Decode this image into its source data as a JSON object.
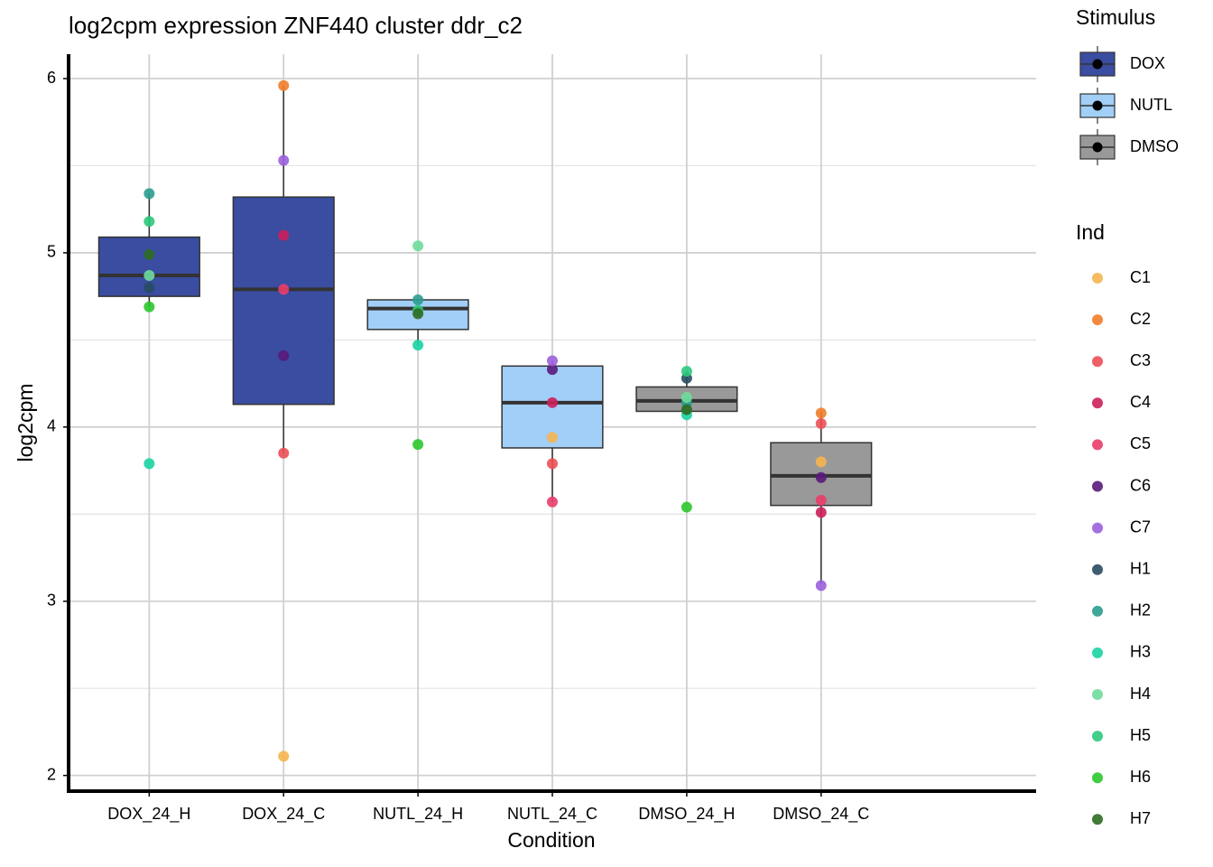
{
  "chart_data": {
    "type": "box",
    "title": "log2cpm expression ZNF440 cluster ddr_c2",
    "x_label": "Condition",
    "y_label": "log2cpm",
    "categories": [
      "DOX_24_H",
      "DOX_24_C",
      "NUTL_24_H",
      "NUTL_24_C",
      "DMSO_24_H",
      "DMSO_24_C"
    ],
    "ylim": [
      1.91,
      6.14
    ],
    "yticks": [
      2,
      3,
      4,
      5,
      6
    ],
    "y_minor_gridlines": [
      2.5,
      3.5,
      4.5,
      5.5
    ],
    "grid": true,
    "boxes": [
      {
        "fill": "#3a4da0",
        "whisker_low": 4.69,
        "q1": 4.75,
        "median": 4.87,
        "q3": 5.09,
        "whisker_high": 5.34
      },
      {
        "fill": "#3a4da0",
        "whisker_low": 3.85,
        "q1": 4.13,
        "median": 4.79,
        "q3": 5.32,
        "whisker_high": 5.96
      },
      {
        "fill": "#a2cff7",
        "whisker_low": 4.47,
        "q1": 4.56,
        "median": 4.68,
        "q3": 4.73,
        "whisker_high": 4.73
      },
      {
        "fill": "#a2cff7",
        "whisker_low": 3.57,
        "q1": 3.88,
        "median": 4.14,
        "q3": 4.35,
        "whisker_high": 4.38
      },
      {
        "fill": "#999999",
        "whisker_low": 4.07,
        "q1": 4.09,
        "median": 4.15,
        "q3": 4.23,
        "whisker_high": 4.32
      },
      {
        "fill": "#999999",
        "whisker_low": 3.1,
        "q1": 3.55,
        "median": 3.72,
        "q3": 3.91,
        "whisker_high": 4.09
      }
    ],
    "stimulus_legend_title": "Stimulus",
    "stimulus": [
      {
        "name": "DOX",
        "color": "#3a4da0"
      },
      {
        "name": "NUTL",
        "color": "#a2cff7"
      },
      {
        "name": "DMSO",
        "color": "#999999"
      }
    ],
    "ind_legend_title": "Ind",
    "series": [
      {
        "name": "C1",
        "color": "#f6b44f",
        "values": [
          null,
          2.11,
          null,
          3.94,
          null,
          3.8
        ]
      },
      {
        "name": "C2",
        "color": "#f07d2a",
        "values": [
          null,
          5.96,
          null,
          null,
          null,
          4.08
        ]
      },
      {
        "name": "C3",
        "color": "#ec4f55",
        "values": [
          null,
          3.85,
          null,
          3.79,
          null,
          4.02
        ]
      },
      {
        "name": "C4",
        "color": "#cc1f5a",
        "values": [
          null,
          5.1,
          null,
          4.14,
          null,
          3.51
        ]
      },
      {
        "name": "C5",
        "color": "#ea3d6a",
        "values": [
          null,
          4.79,
          null,
          3.57,
          null,
          3.58
        ]
      },
      {
        "name": "C6",
        "color": "#5a1a7a",
        "values": [
          null,
          4.41,
          null,
          4.33,
          null,
          3.71
        ]
      },
      {
        "name": "C7",
        "color": "#9b5fdb",
        "values": [
          null,
          5.53,
          null,
          4.38,
          null,
          3.09
        ]
      },
      {
        "name": "H1",
        "color": "#284b63",
        "values": [
          4.8,
          null,
          null,
          null,
          4.28,
          null
        ]
      },
      {
        "name": "H2",
        "color": "#2a9d8f",
        "values": [
          5.34,
          null,
          4.73,
          null,
          4.14,
          null
        ]
      },
      {
        "name": "H3",
        "color": "#19d3a2",
        "values": [
          3.79,
          null,
          4.47,
          null,
          4.07,
          null
        ]
      },
      {
        "name": "H4",
        "color": "#6fdc9b",
        "values": [
          4.87,
          null,
          5.04,
          null,
          4.17,
          null
        ]
      },
      {
        "name": "H5",
        "color": "#2ec97b",
        "values": [
          5.18,
          null,
          4.67,
          null,
          4.32,
          null
        ]
      },
      {
        "name": "H6",
        "color": "#2cc72c",
        "values": [
          4.69,
          null,
          3.9,
          null,
          3.54,
          null
        ]
      },
      {
        "name": "H7",
        "color": "#2e6b22",
        "values": [
          4.99,
          null,
          4.65,
          null,
          4.1,
          null
        ]
      }
    ]
  }
}
